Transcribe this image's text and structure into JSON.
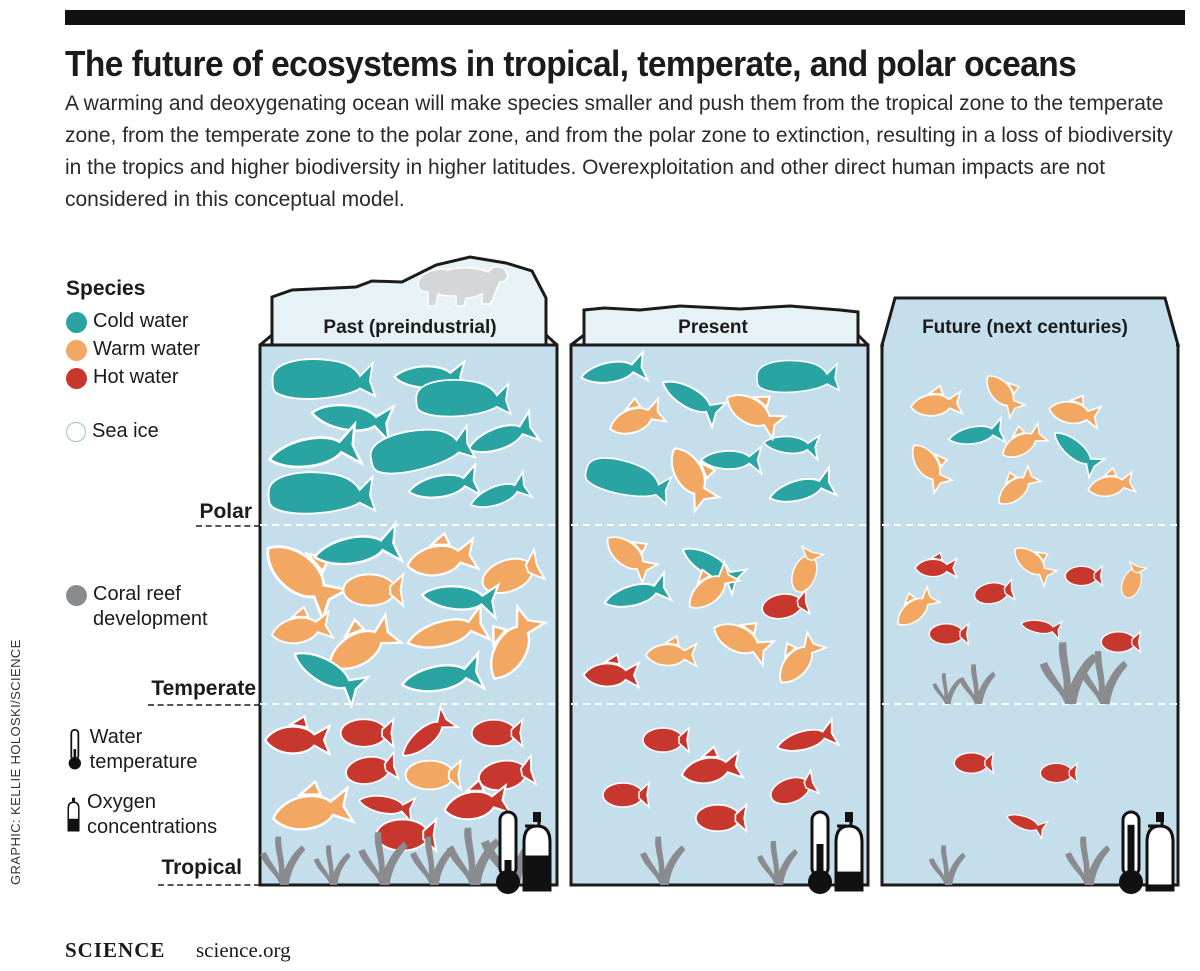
{
  "title": "The future of ecosystems in tropical, temperate, and polar oceans",
  "subtitle": "A warming and deoxygenating ocean will make species smaller and push them from the tropical zone to the temperate zone, from the temperate zone to the polar zone, and from the polar zone to extinction, resulting in a loss of biodiversity in the tropics and higher biodiversity in higher latitudes. Overexploitation and other direct human impacts are not considered in this conceptual model.",
  "credit": "GRAPHIC: KELLIE HOLOSKI/SCIENCE",
  "footer": {
    "brand": "SCIENCE",
    "url": "science.org"
  },
  "legend": {
    "heading": "Species",
    "cold": "Cold water",
    "warm": "Warm water",
    "hot": "Hot water",
    "sea_ice": "Sea ice",
    "coral": "Coral reef development",
    "water_temp": "Water temperature",
    "oxygen": "Oxygen concentrations"
  },
  "zones": {
    "polar": "Polar",
    "temperate": "Temperate",
    "tropical": "Tropical"
  },
  "panels": [
    {
      "title": "Past (preindustrial)",
      "temperature_level": 0.25,
      "oxygen_level": 0.75
    },
    {
      "title": "Present",
      "temperature_level": 0.5,
      "oxygen_level": 0.4
    },
    {
      "title": "Future (next centuries)",
      "temperature_level": 0.8,
      "oxygen_level": 0.12
    }
  ],
  "colors": {
    "cold": "#2aa3a3",
    "warm": "#f2a763",
    "hot": "#c8372d",
    "coral": "#8a8b8e",
    "water": "#c5deeb",
    "ice": "#e7f2f7",
    "bar": "#111111"
  }
}
